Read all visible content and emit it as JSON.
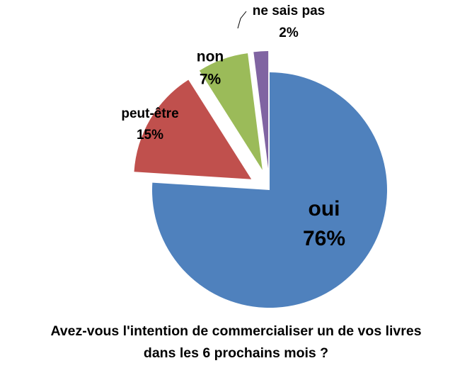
{
  "chart_data": {
    "type": "pie",
    "title_lines": [
      "Avez-vous l'intention de commercialiser un de vos livres",
      "dans les 6 prochains mois ?"
    ],
    "slices": [
      {
        "name": "oui",
        "label": "76%",
        "value": 76,
        "color": "#4F81BD",
        "exploded": false
      },
      {
        "name": "peut-être",
        "label": "15%",
        "value": 15,
        "color": "#C0504D",
        "exploded": true
      },
      {
        "name": "non",
        "label": "7%",
        "value": 7,
        "color": "#9BBB59",
        "exploded": true
      },
      {
        "name": "ne sais pas",
        "label": "2%",
        "value": 2,
        "color": "#8064A2",
        "exploded": true
      }
    ],
    "legend": "none",
    "data_labels": "category-and-percent"
  }
}
